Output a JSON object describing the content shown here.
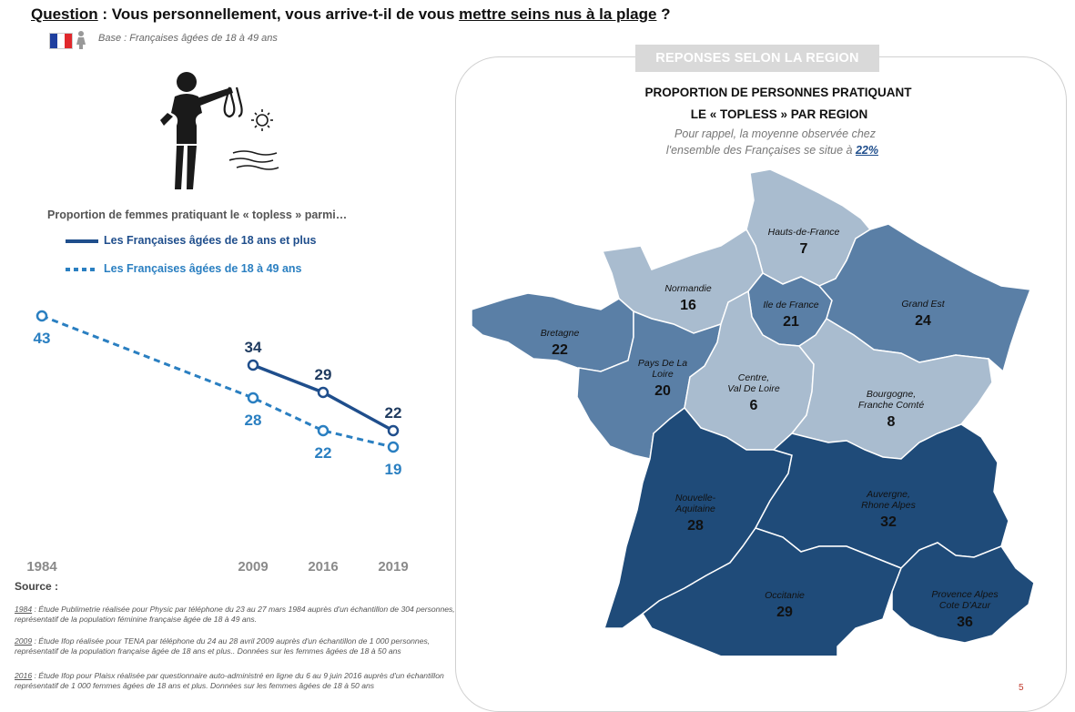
{
  "header": {
    "question_label": "Question",
    "question_mid": " : Vous personnellement, vous arrive-t-il de vous ",
    "question_emph": "mettre seins nus à la plage",
    "question_end": " ?",
    "base": "Base : Françaises âgées de 18 à 49 ans"
  },
  "colors": {
    "series_18_plus": "#1f4e8c",
    "series_18_49": "#2a7fc1",
    "map_light": "#a9bccf",
    "map_medium": "#5a7fa6",
    "map_dark": "#1f4b79",
    "flag_blue": "#1f3f9f",
    "flag_white": "#ffffff",
    "flag_red": "#e0282c"
  },
  "chart_data": {
    "type": "line",
    "title": "Proportion de femmes pratiquant le « topless » parmi…",
    "x": [
      "1984",
      "2009",
      "2016",
      "2019"
    ],
    "series": [
      {
        "name": "Les Françaises âgées de 18 ans et plus",
        "style": "solid",
        "values": [
          null,
          34,
          29,
          22
        ]
      },
      {
        "name": "Les Françaises âgées de 18 à 49 ans",
        "style": "dashed",
        "values": [
          43,
          28,
          22,
          19
        ]
      }
    ],
    "xlabel": "",
    "ylabel": ""
  },
  "sources": {
    "title": "Source :",
    "notes": [
      {
        "year": "1984",
        "text": " : Étude Publimetrie réalisée pour Physic par téléphone du 23 au 27 mars 1984 auprès d'un échantillon de 304 personnes, représentatif de la population féminine française âgée de 18 à 49 ans."
      },
      {
        "year": "2009",
        "text": " : Étude Ifop réalisée pour TENA par téléphone du 24 au 28 avril 2009 auprès d'un échantillon de 1 000 personnes, représentatif de la population française âgée de 18 ans et plus.. Données sur les femmes âgées de 18 à 50 ans"
      },
      {
        "year": "2016",
        "text": " : Étude Ifop pour Plaisx réalisée par questionnaire auto-administré en ligne du 6 au 9 juin 2016 auprès d'un échantillon représentatif de 1 000 femmes âgées de 18 ans et plus. Données sur les femmes âgées de 18 à 50 ans"
      }
    ]
  },
  "region_panel": {
    "tab": "REPONSES SELON  LA REGION",
    "title_line1": "PROPORTION DE PERSONNES PRATIQUANT",
    "title_line2": "LE « TOPLESS »  PAR REGION",
    "note_line1": "Pour rappel, la moyenne observée chez",
    "note_line2": "l'ensemble des Françaises se situe à ",
    "average": "22%"
  },
  "regions": [
    {
      "name": "Hauts-de-France",
      "value": "7",
      "shade": "light"
    },
    {
      "name": "Normandie",
      "value": "16",
      "shade": "light"
    },
    {
      "name": "Ile de France",
      "value": "21",
      "shade": "medium"
    },
    {
      "name": "Grand Est",
      "value": "24",
      "shade": "medium"
    },
    {
      "name": "Bretagne",
      "value": "22",
      "shade": "medium"
    },
    {
      "name": "Pays De La Loire",
      "value": "20",
      "shade": "medium"
    },
    {
      "name": "Centre, Val De Loire",
      "value": "6",
      "shade": "light"
    },
    {
      "name": "Bourgogne, Franche Comté",
      "value": "8",
      "shade": "light"
    },
    {
      "name": "Nouvelle-Aquitaine",
      "value": "28",
      "shade": "dark"
    },
    {
      "name": "Auvergne, Rhone Alpes",
      "value": "32",
      "shade": "dark"
    },
    {
      "name": "Occitanie",
      "value": "29",
      "shade": "dark"
    },
    {
      "name": "Provence Alpes Cote D'Azur",
      "value": "36",
      "shade": "dark"
    }
  ],
  "page_number": "5"
}
